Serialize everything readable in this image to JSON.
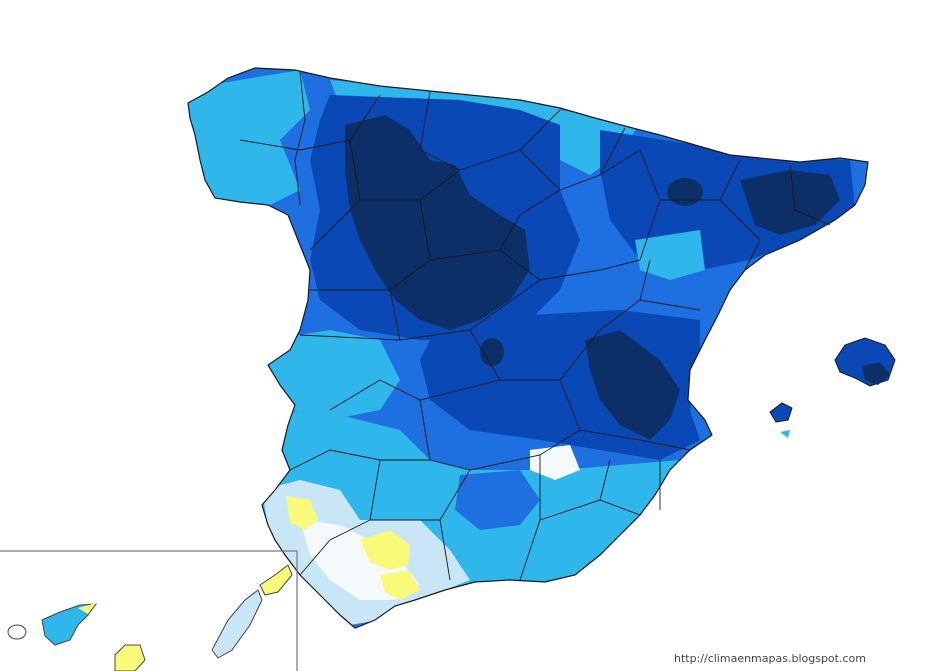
{
  "map": {
    "region": "Spain",
    "colors": {
      "sea": "#ffffff",
      "border": "#1a1a1a",
      "darkest_blue": "#0b2f66",
      "dark_blue": "#0a49b5",
      "medium_blue": "#1e6fe0",
      "light_blue": "#2fb6ea",
      "pale_blue": "#c8e6f5",
      "white_area": "#f4f9fc",
      "yellow": "#fafa7a",
      "inset_frame": "#777777"
    },
    "credit": "http://climaenmapas.blogspot.com"
  }
}
